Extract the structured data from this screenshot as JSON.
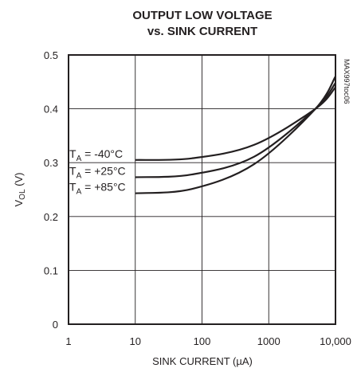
{
  "chart_data": {
    "type": "line",
    "title_line1": "OUTPUT LOW VOLTAGE",
    "title_line2": "vs. SINK CURRENT",
    "xlabel": "SINK CURRENT (µA)",
    "ylabel_main": "V",
    "ylabel_sub": "OL",
    "ylabel_unit": " (V)",
    "x_scale": "log",
    "xlim": [
      1,
      10000
    ],
    "ylim": [
      0,
      0.5
    ],
    "grid": true,
    "x_ticks": [
      {
        "value": 1,
        "label": "1"
      },
      {
        "value": 10,
        "label": "10"
      },
      {
        "value": 100,
        "label": "100"
      },
      {
        "value": 1000,
        "label": "1000"
      },
      {
        "value": 10000,
        "label": "10,000"
      }
    ],
    "y_ticks": [
      {
        "value": 0,
        "label": "0"
      },
      {
        "value": 0.1,
        "label": "0.1"
      },
      {
        "value": 0.2,
        "label": "0.2"
      },
      {
        "value": 0.3,
        "label": "0.3"
      },
      {
        "value": 0.4,
        "label": "0.4"
      },
      {
        "value": 0.5,
        "label": "0.5"
      }
    ],
    "series": [
      {
        "label_main": "T",
        "label_sub": "A",
        "label_rest": " = -40°C",
        "x": [
          10,
          70,
          600,
          5000,
          10000
        ],
        "y": [
          0.305,
          0.308,
          0.333,
          0.4,
          0.44
        ]
      },
      {
        "label_main": "T",
        "label_sub": "A",
        "label_rest": " = +25°C",
        "x": [
          10,
          70,
          600,
          5000,
          10000
        ],
        "y": [
          0.273,
          0.278,
          0.311,
          0.4,
          0.448
        ]
      },
      {
        "label_main": "T",
        "label_sub": "A",
        "label_rest": " = +85°C",
        "x": [
          10,
          70,
          600,
          5000,
          10000
        ],
        "y": [
          0.243,
          0.251,
          0.297,
          0.4,
          0.46
        ]
      }
    ],
    "side_text": "MAX997toc06"
  }
}
